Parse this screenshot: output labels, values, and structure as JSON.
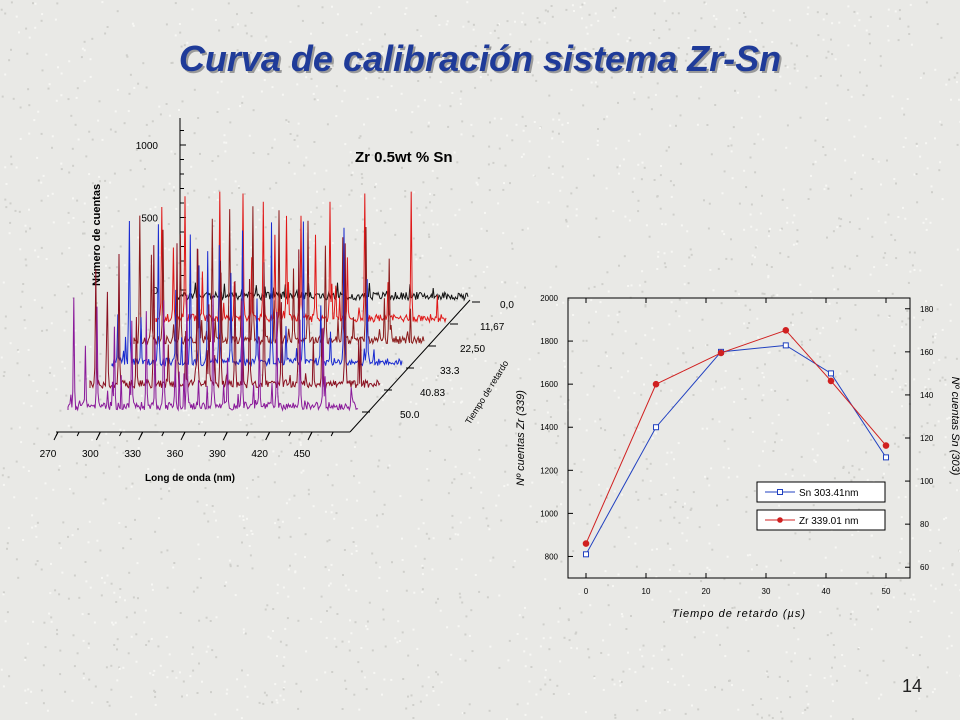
{
  "slide": {
    "title": "Curva de calibración  sistema Zr-Sn",
    "page_number": "14"
  },
  "chart_data": [
    {
      "type": "line",
      "subtype": "3d-waterfall-spectra",
      "title": "Zr 0.5wt % Sn",
      "xlabel": "Long de onda  (nm)",
      "ylabel": "Número de cuentas",
      "zlabel": "Tiempo de retardo",
      "x_ticks": [
        "270",
        "300",
        "330",
        "360",
        "390",
        "420",
        "450"
      ],
      "y_ticks": [
        "0",
        "500",
        "1000"
      ],
      "z_ticks": [
        "0,0",
        "11,67",
        "22,50",
        "33.3",
        "40.83",
        "50.0"
      ],
      "xlim": [
        270,
        450
      ],
      "ylim": [
        0,
        1000
      ],
      "series": [
        {
          "delay": "0,0",
          "color": "#111111",
          "peak_max": 120
        },
        {
          "delay": "11,67",
          "color": "#e01818",
          "peak_max": 900
        },
        {
          "delay": "22,50",
          "color": "#8b1c1c",
          "peak_max": 950
        },
        {
          "delay": "33.3",
          "color": "#1a2bd0",
          "peak_max": 1000
        },
        {
          "delay": "40.83",
          "color": "#8a1020",
          "peak_max": 1000
        },
        {
          "delay": "50.0",
          "color": "#8a1a9a",
          "peak_max": 800
        }
      ]
    },
    {
      "type": "line",
      "xlabel": "Tiempo de retardo (µs)",
      "ylabel": "Nº cuentas  Zr (339)",
      "y2label": "Nº cuentas  Sn (303)",
      "xlim": [
        -3,
        54
      ],
      "ylim": [
        700,
        2000
      ],
      "y2lim": [
        55,
        185
      ],
      "x_ticks": [
        0,
        10,
        20,
        30,
        40,
        50
      ],
      "y_ticks": [
        800,
        1000,
        1200,
        1400,
        1600,
        1800,
        2000
      ],
      "y2_ticks": [
        60,
        80,
        100,
        120,
        140,
        160,
        180
      ],
      "legend_position": "lower-right",
      "series": [
        {
          "name": "Sn 303.41nm",
          "axis": "right",
          "color": "#2040c0",
          "marker": "open-square",
          "x": [
            0,
            11.67,
            22.5,
            33.3,
            40.83,
            50.0
          ],
          "values": [
            66,
            125,
            160,
            163,
            150,
            111
          ]
        },
        {
          "name": "Zr 339.01 nm",
          "axis": "left",
          "color": "#d02020",
          "marker": "filled-circle",
          "x": [
            0,
            11.67,
            22.5,
            33.3,
            40.83,
            50.0
          ],
          "values": [
            860,
            1600,
            1745,
            1850,
            1615,
            1315
          ]
        }
      ]
    }
  ]
}
